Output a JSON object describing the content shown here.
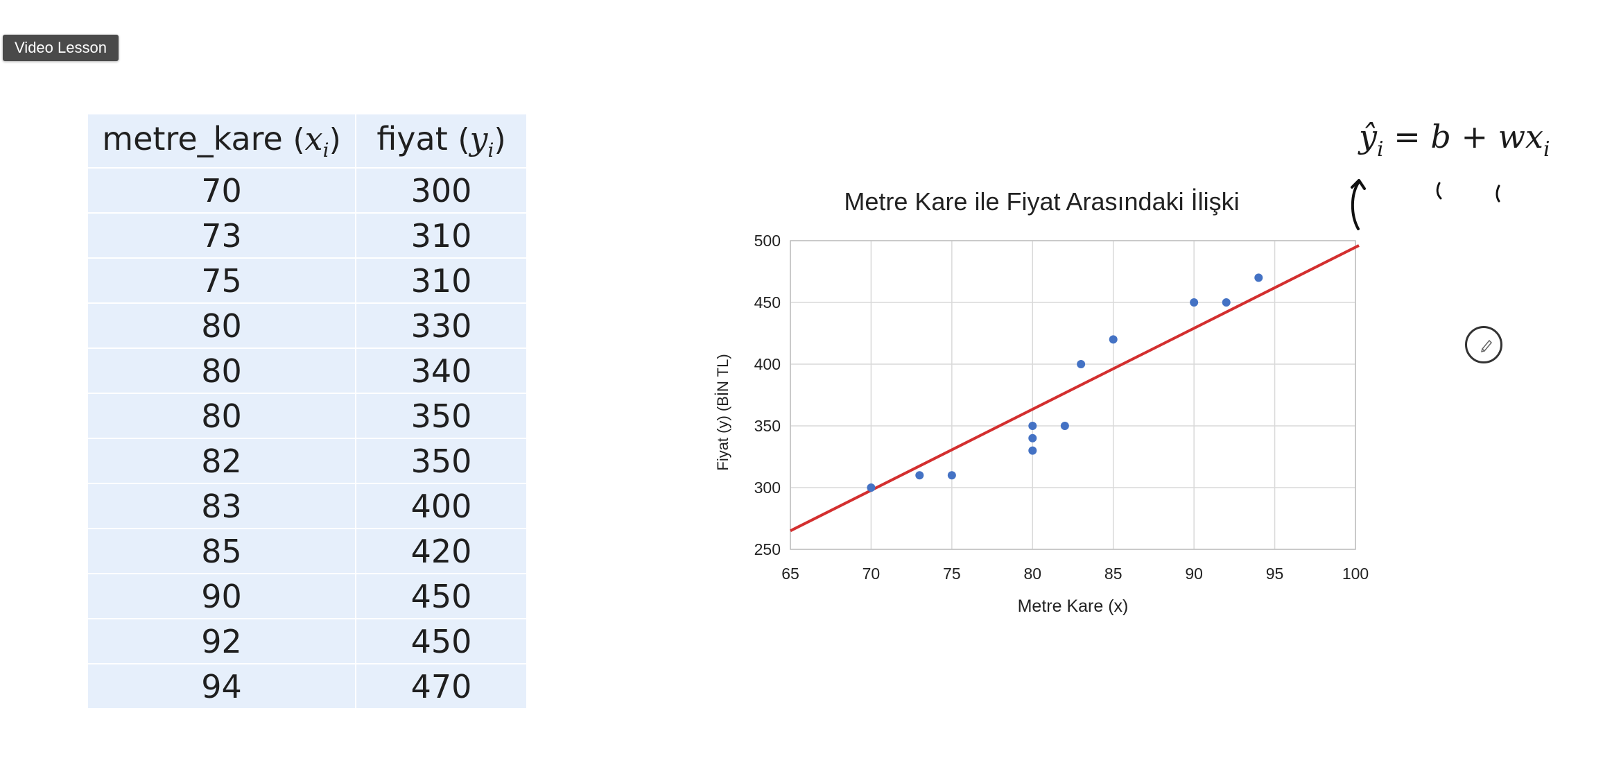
{
  "badge": {
    "label": "Video Lesson"
  },
  "table": {
    "header_x_name": "metre_kare",
    "header_x_var": "x",
    "header_x_sub": "i",
    "header_y_name": "fiyat",
    "header_y_var": "y",
    "header_y_sub": "i",
    "open_paren": "(",
    "close_paren": ")",
    "rows": [
      {
        "x": "70",
        "y": "300"
      },
      {
        "x": "73",
        "y": "310"
      },
      {
        "x": "75",
        "y": "310"
      },
      {
        "x": "80",
        "y": "330"
      },
      {
        "x": "80",
        "y": "340"
      },
      {
        "x": "80",
        "y": "350"
      },
      {
        "x": "82",
        "y": "350"
      },
      {
        "x": "83",
        "y": "400"
      },
      {
        "x": "85",
        "y": "420"
      },
      {
        "x": "90",
        "y": "450"
      },
      {
        "x": "92",
        "y": "450"
      },
      {
        "x": "94",
        "y": "470"
      }
    ]
  },
  "chart_data": {
    "type": "scatter",
    "title": "Metre Kare ile Fiyat Arasındaki İlişki",
    "xlabel": "Metre Kare (x)",
    "ylabel": "Fiyat (y) (BİN TL)",
    "xlim": [
      65,
      100
    ],
    "ylim": [
      250,
      500
    ],
    "xticks": [
      65,
      70,
      75,
      80,
      85,
      90,
      95,
      100
    ],
    "yticks": [
      250,
      300,
      350,
      400,
      450,
      500
    ],
    "grid": true,
    "series": [
      {
        "x": [
          70,
          73,
          75,
          80,
          80,
          80,
          82,
          83,
          85,
          90,
          92,
          94
        ],
        "y": [
          300,
          310,
          310,
          330,
          340,
          350,
          350,
          400,
          420,
          450,
          450,
          470
        ],
        "color": "#4472c4"
      }
    ],
    "trendline": {
      "x": [
        65,
        100
      ],
      "y": [
        265,
        495
      ],
      "color": "#d32f2f"
    }
  },
  "formula": {
    "lhs": "ŷ",
    "lhs_sub": "i",
    "equals": "=",
    "b": "b",
    "plus": "+",
    "w": "w",
    "x": "x",
    "x_sub": "i"
  },
  "colors": {
    "table_bg": "#e6effb",
    "point": "#4472c4",
    "trend": "#d32f2f",
    "badge_bg": "#4a4a4a"
  },
  "icons": {
    "pen_tool": "pen-tool-icon"
  }
}
